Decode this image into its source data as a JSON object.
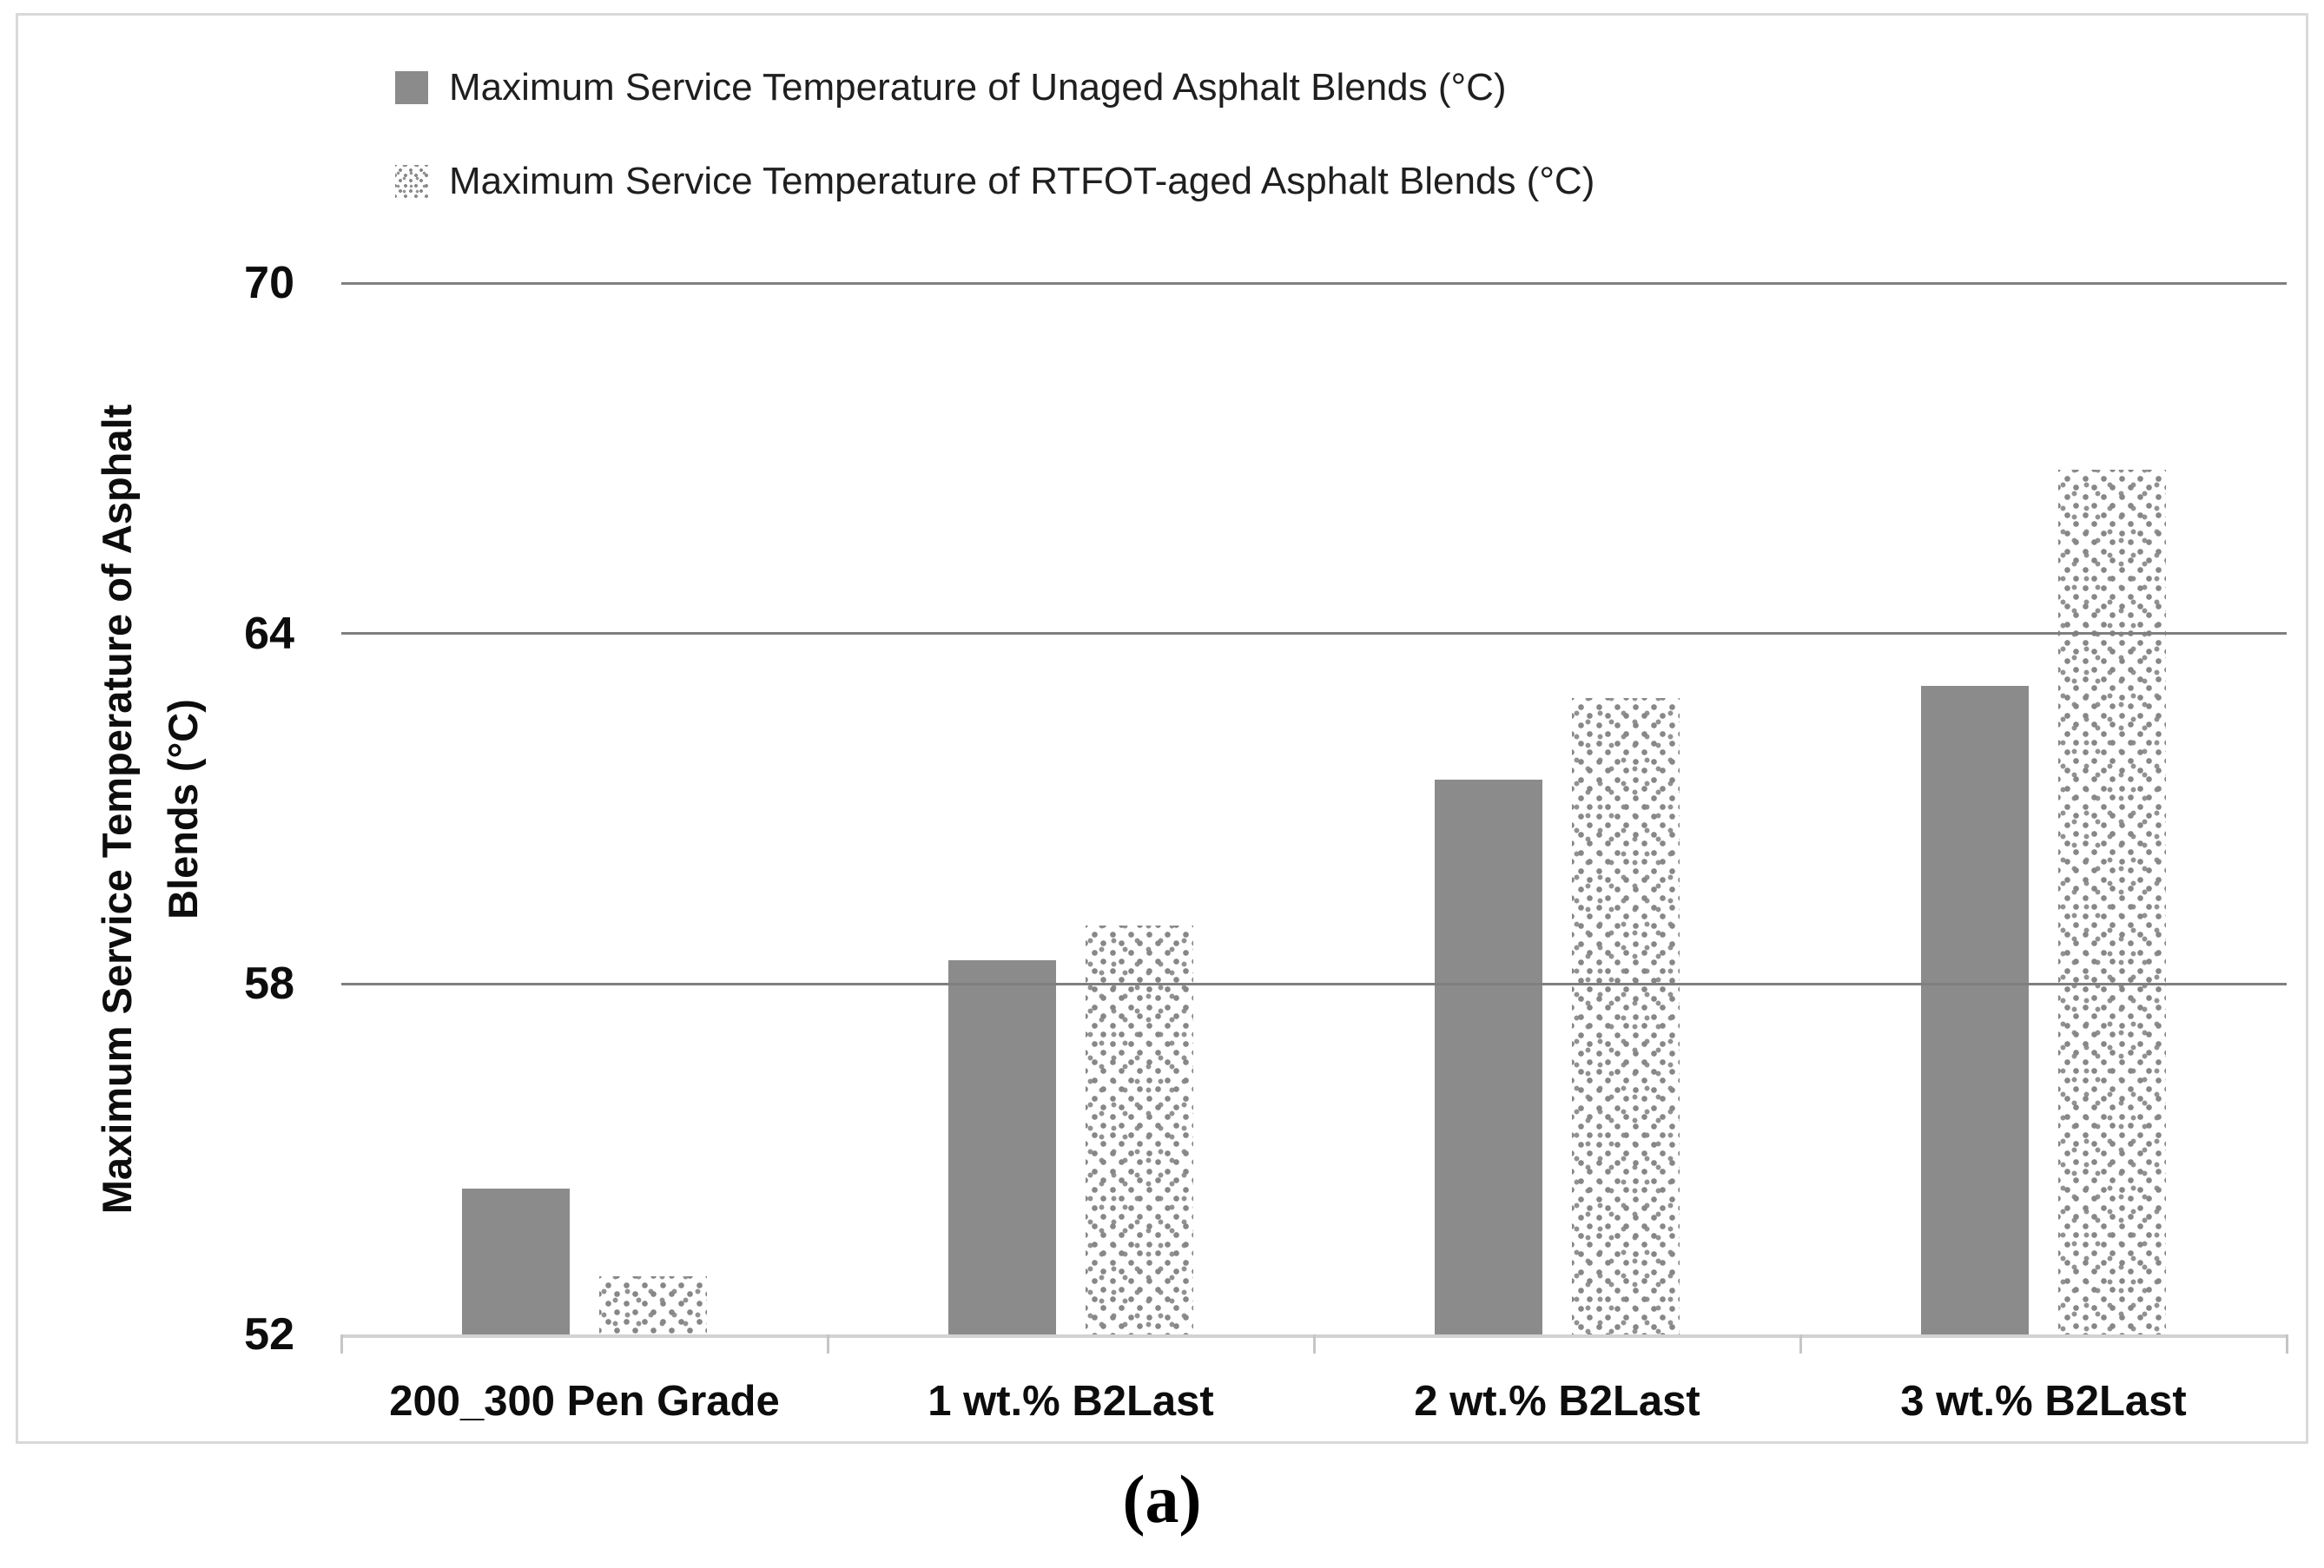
{
  "figure": {
    "caption": "(a)",
    "y_axis": {
      "title_line1": "Maximum Service Temperature of Asphalt",
      "title_line2": "Blends (°C)"
    },
    "legend": [
      {
        "label": "Maximum Service Temperature of Unaged Asphalt Blends (°C)",
        "swatch": "solid-gray-square"
      },
      {
        "label": "Maximum Service Temperature of RTFOT-aged Asphalt Blends (°C)",
        "swatch": "dotted-pattern-square"
      }
    ],
    "colors": {
      "bar_solid": "#8b8b8b",
      "dot_pattern": "#8a8a8a",
      "gridline": "#7f7f7f",
      "baseline": "#d2d2d2",
      "border": "#d9d9d9",
      "text": "#111111"
    }
  },
  "chart_data": {
    "type": "bar",
    "categories": [
      "200_300 Pen Grade",
      "1 wt.% B2Last",
      "2 wt.% B2Last",
      "3 wt.% B2Last"
    ],
    "series": [
      {
        "name": "Maximum Service Temperature of Unaged Asphalt Blends (°C)",
        "key": "unaged",
        "style": "solid",
        "values": [
          54.5,
          58.4,
          61.5,
          63.1
        ]
      },
      {
        "name": "Maximum Service Temperature of RTFOT-aged Asphalt Blends (°C)",
        "key": "rtfot-aged",
        "style": "dotted",
        "values": [
          53.0,
          59.0,
          62.9,
          66.8
        ]
      }
    ],
    "ylabel": "Maximum Service Temperature of Asphalt Blends (°C)",
    "ylim": [
      52,
      70
    ],
    "yticks": [
      52,
      58,
      64,
      70
    ],
    "grid": true,
    "legend_position": "top-left-inside"
  }
}
